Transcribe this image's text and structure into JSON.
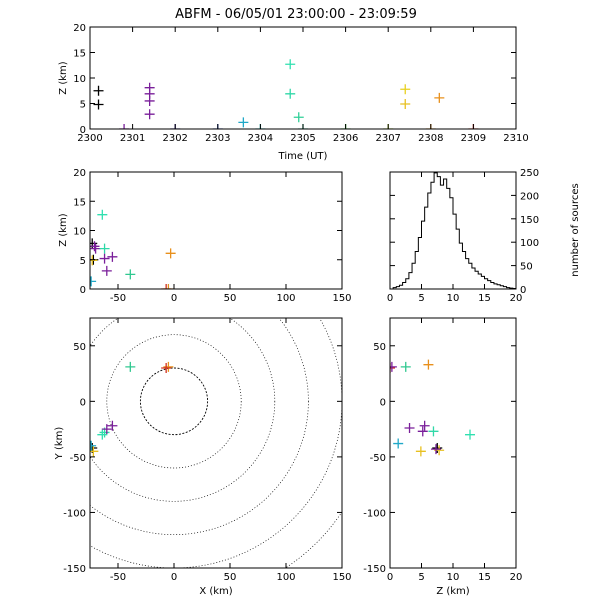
{
  "title": "ABFM - 06/05/01 23:00:00 - 23:09:59",
  "chart_data": [
    {
      "name": "time-height",
      "type": "scatter",
      "xlabel": "Time (UT)",
      "ylabel": "Z (km)",
      "xlim": [
        2300,
        2310
      ],
      "ylim": [
        0,
        20
      ],
      "xticks": [
        2300,
        2301,
        2302,
        2303,
        2304,
        2305,
        2306,
        2307,
        2308,
        2309,
        2310
      ],
      "yticks": [
        0,
        5,
        10,
        15,
        20
      ],
      "marker": "plus",
      "points": [
        {
          "x": 2300.2,
          "y": 7.5,
          "color": "#000000"
        },
        {
          "x": 2300.2,
          "y": 4.8,
          "color": "#000000"
        },
        {
          "x": 2300.8,
          "y": 0.0,
          "color": "#7a1f9a"
        },
        {
          "x": 2301.4,
          "y": 8.1,
          "color": "#7a1f9a"
        },
        {
          "x": 2301.4,
          "y": 6.9,
          "color": "#7a1f9a"
        },
        {
          "x": 2301.4,
          "y": 5.5,
          "color": "#7a1f9a"
        },
        {
          "x": 2301.4,
          "y": 2.9,
          "color": "#7a1f9a"
        },
        {
          "x": 2302.0,
          "y": 0.0,
          "color": "#3a2a9a"
        },
        {
          "x": 2303.0,
          "y": 0.0,
          "color": "#3050c0"
        },
        {
          "x": 2303.6,
          "y": 1.3,
          "color": "#20a8c8"
        },
        {
          "x": 2304.0,
          "y": 0.0,
          "color": "#20c0c0"
        },
        {
          "x": 2304.7,
          "y": 12.7,
          "color": "#30e0b0"
        },
        {
          "x": 2304.7,
          "y": 6.9,
          "color": "#30d8a8"
        },
        {
          "x": 2304.9,
          "y": 2.3,
          "color": "#30d098"
        },
        {
          "x": 2305.0,
          "y": 0.0,
          "color": "#30c890"
        },
        {
          "x": 2306.0,
          "y": 0.0,
          "color": "#40c040"
        },
        {
          "x": 2307.0,
          "y": 0.0,
          "color": "#a0c020"
        },
        {
          "x": 2307.4,
          "y": 7.8,
          "color": "#e8d020"
        },
        {
          "x": 2307.4,
          "y": 4.9,
          "color": "#e8c020"
        },
        {
          "x": 2308.0,
          "y": 0.0,
          "color": "#e09020"
        },
        {
          "x": 2308.2,
          "y": 6.1,
          "color": "#e8901c"
        },
        {
          "x": 2309.0,
          "y": 0.0,
          "color": "#d03020"
        }
      ]
    },
    {
      "name": "x-z-projection",
      "type": "scatter",
      "ylabel": "Z (km)",
      "xlim": [
        -75,
        150
      ],
      "ylim": [
        0,
        20
      ],
      "xticks": [
        -50,
        0,
        50,
        100,
        150
      ],
      "yticks": [
        0,
        5,
        10,
        15,
        20
      ],
      "marker": "plus",
      "points": [
        {
          "x": -73,
          "y": 7.8,
          "color": "#000000"
        },
        {
          "x": -72,
          "y": 5.0,
          "color": "#000000"
        },
        {
          "x": -71,
          "y": 7.3,
          "color": "#7a1f9a"
        },
        {
          "x": -70,
          "y": 6.9,
          "color": "#7a1f9a"
        },
        {
          "x": -62,
          "y": 5.2,
          "color": "#7a1f9a"
        },
        {
          "x": -55,
          "y": 5.5,
          "color": "#7a1f9a"
        },
        {
          "x": -60,
          "y": 3.1,
          "color": "#7a1f9a"
        },
        {
          "x": -64,
          "y": 12.7,
          "color": "#30e0b0"
        },
        {
          "x": -62,
          "y": 6.9,
          "color": "#30d8a8"
        },
        {
          "x": -39,
          "y": 2.5,
          "color": "#30c890"
        },
        {
          "x": -74,
          "y": 1.3,
          "color": "#20a8c8"
        },
        {
          "x": -73,
          "y": 4.9,
          "color": "#e8c020"
        },
        {
          "x": -3,
          "y": 6.1,
          "color": "#e8901c"
        },
        {
          "x": -7,
          "y": 0.0,
          "color": "#d03020"
        },
        {
          "x": -5,
          "y": 0.0,
          "color": "#e09020"
        }
      ]
    },
    {
      "name": "height-histogram",
      "type": "bar",
      "ylabel": "number of sources",
      "xlim": [
        0,
        20
      ],
      "ylim": [
        0,
        250
      ],
      "xticks": [
        0,
        5,
        10,
        15,
        20
      ],
      "yticks": [
        0,
        50,
        100,
        150,
        200,
        250
      ],
      "bin_width": 0.5,
      "values": [
        0,
        3,
        5,
        8,
        14,
        22,
        35,
        55,
        80,
        110,
        145,
        175,
        205,
        228,
        248,
        240,
        222,
        235,
        215,
        195,
        160,
        128,
        98,
        80,
        65,
        55,
        45,
        38,
        32,
        27,
        22,
        18,
        14,
        11,
        9,
        7,
        5,
        3,
        2,
        1
      ]
    },
    {
      "name": "plan-view",
      "type": "scatter",
      "xlabel": "X (km)",
      "ylabel": "Y (km)",
      "xlim": [
        -75,
        150
      ],
      "ylim": [
        -150,
        75
      ],
      "xticks": [
        -50,
        0,
        50,
        100,
        150
      ],
      "yticks": [
        -150,
        -100,
        -50,
        0,
        50
      ],
      "range_rings": [
        30,
        60,
        90,
        120,
        150,
        180
      ],
      "marker": "plus",
      "points": [
        {
          "x": -73,
          "y": -42,
          "color": "#000000"
        },
        {
          "x": -72,
          "y": -45,
          "color": "#e8c020"
        },
        {
          "x": -74,
          "y": -40,
          "color": "#20a8c8"
        },
        {
          "x": -62,
          "y": -28,
          "color": "#30d8a8"
        },
        {
          "x": -60,
          "y": -25,
          "color": "#7a1f9a"
        },
        {
          "x": -55,
          "y": -22,
          "color": "#7a1f9a"
        },
        {
          "x": -64,
          "y": -30,
          "color": "#30e0b0"
        },
        {
          "x": -39,
          "y": 31,
          "color": "#30c890"
        },
        {
          "x": -5,
          "y": 31,
          "color": "#e8901c"
        },
        {
          "x": -7,
          "y": 30,
          "color": "#d03020"
        }
      ]
    },
    {
      "name": "z-y-projection",
      "type": "scatter",
      "xlabel": "Z (km)",
      "xlim": [
        0,
        20
      ],
      "ylim": [
        -150,
        75
      ],
      "xticks": [
        0,
        5,
        10,
        15,
        20
      ],
      "yticks": [
        -150,
        -100,
        -50,
        0,
        50
      ],
      "marker": "plus",
      "points": [
        {
          "x": 0.0,
          "y": 30,
          "color": "#d03020"
        },
        {
          "x": 0.3,
          "y": 31,
          "color": "#7a1f9a"
        },
        {
          "x": 2.5,
          "y": 31,
          "color": "#30c890"
        },
        {
          "x": 6.1,
          "y": 33,
          "color": "#e8901c"
        },
        {
          "x": 1.3,
          "y": -38,
          "color": "#20a8c8"
        },
        {
          "x": 3.1,
          "y": -24,
          "color": "#7a1f9a"
        },
        {
          "x": 5.5,
          "y": -22,
          "color": "#7a1f9a"
        },
        {
          "x": 5.2,
          "y": -27,
          "color": "#7a1f9a"
        },
        {
          "x": 6.9,
          "y": -27,
          "color": "#30d8a8"
        },
        {
          "x": 12.7,
          "y": -30,
          "color": "#30e0b0"
        },
        {
          "x": 4.9,
          "y": -45,
          "color": "#e8c020"
        },
        {
          "x": 7.5,
          "y": -42,
          "color": "#000000"
        },
        {
          "x": 7.8,
          "y": -44,
          "color": "#e8c020"
        },
        {
          "x": 7.3,
          "y": -43,
          "color": "#7a1f9a"
        }
      ]
    }
  ]
}
